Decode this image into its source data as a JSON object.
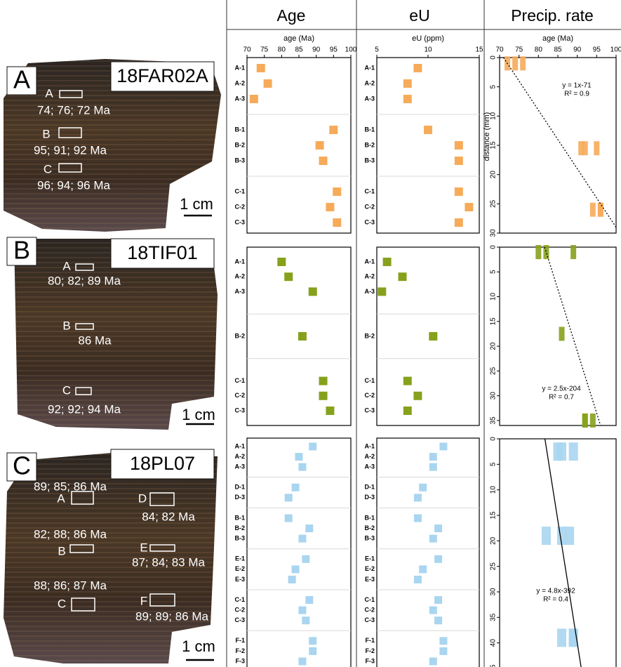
{
  "column_titles": [
    "Age",
    "eU",
    "Precip. rate"
  ],
  "photos": [
    {
      "letter": "A",
      "sample": "18FAR02A",
      "scale": "1 cm",
      "zones": [
        {
          "label": "A",
          "ages": "74; 76; 72 Ma"
        },
        {
          "label": "B",
          "ages": "95; 91; 92 Ma"
        },
        {
          "label": "C",
          "ages": "96; 94; 96 Ma"
        }
      ]
    },
    {
      "letter": "B",
      "sample": "18TIF01",
      "scale": "1 cm",
      "zones": [
        {
          "label": "A",
          "ages": "80; 82; 89 Ma"
        },
        {
          "label": "B",
          "ages": "86 Ma"
        },
        {
          "label": "C",
          "ages": "92; 92; 94 Ma"
        }
      ]
    },
    {
      "letter": "C",
      "sample": "18PL07",
      "scale": "1 cm",
      "zones": [
        {
          "label": "A",
          "ages": "89; 85; 86 Ma"
        },
        {
          "label": "D",
          "ages": "84; 82 Ma"
        },
        {
          "label": "B",
          "ages": "82; 88; 86 Ma"
        },
        {
          "label": "E",
          "ages": "87; 84; 83 Ma"
        },
        {
          "label": "C",
          "ages": "88; 86; 87 Ma"
        },
        {
          "label": "F",
          "ages": "89; 89; 86 Ma"
        }
      ]
    }
  ],
  "chart_data": [
    {
      "type": "dot",
      "x_label": "age (Ma)",
      "xlim": [
        70,
        100
      ],
      "xticks": [
        70,
        75,
        80,
        85,
        90,
        95,
        100
      ],
      "color": "#f6ab5a",
      "categories": [
        "A-1",
        "A-2",
        "A-3",
        null,
        "B-1",
        "B-2",
        "B-3",
        null,
        "C-1",
        "C-2",
        "C-3"
      ],
      "values": [
        74,
        76,
        72,
        null,
        95,
        91,
        92,
        null,
        96,
        94,
        96
      ]
    },
    {
      "type": "dot",
      "x_label": "eU (ppm)",
      "xlim": [
        5,
        15
      ],
      "xticks": [
        5,
        10,
        15
      ],
      "color": "#f6ab5a",
      "categories": [
        "A-1",
        "A-2",
        "A-3",
        null,
        "B-1",
        "B-2",
        "B-3",
        null,
        "C-1",
        "C-2",
        "C-3"
      ],
      "values": [
        9,
        8,
        8,
        null,
        10,
        13,
        13,
        null,
        13,
        14,
        13
      ]
    },
    {
      "type": "scatter",
      "x_label": "age (Ma)",
      "y_label": "distance (mm)",
      "xlim": [
        70,
        100
      ],
      "xticks": [
        70,
        75,
        80,
        85,
        90,
        95,
        100
      ],
      "ylim": [
        0,
        30
      ],
      "yticks": [
        0,
        5,
        10,
        15,
        20,
        25,
        30
      ],
      "y_inverted": true,
      "color": "#f6ab5a",
      "x": [
        74,
        76,
        72,
        95,
        91,
        92,
        96,
        94,
        96
      ],
      "y": [
        1,
        1,
        1,
        15.5,
        15.5,
        15.5,
        26,
        26,
        26
      ],
      "fit": {
        "equation": "y = 1x-71",
        "r2": "R² = 0.9",
        "slope": 1,
        "intercept": -71,
        "style": "dotted"
      }
    },
    {
      "type": "dot",
      "xlim": [
        70,
        100
      ],
      "color": "#86a11c",
      "categories": [
        "A-1",
        "A-2",
        "A-3",
        null,
        null,
        "B-2",
        null,
        null,
        "C-1",
        "C-2",
        "C-3"
      ],
      "values": [
        80,
        82,
        89,
        null,
        null,
        86,
        null,
        null,
        92,
        92,
        94
      ]
    },
    {
      "type": "dot",
      "xlim": [
        5,
        15
      ],
      "color": "#86a11c",
      "categories": [
        "A-1",
        "A-2",
        "A-3",
        null,
        null,
        "B-2",
        null,
        null,
        "C-1",
        "C-2",
        "C-3"
      ],
      "values": [
        6,
        7.5,
        5.5,
        null,
        null,
        10.5,
        null,
        null,
        8,
        9,
        8
      ]
    },
    {
      "type": "scatter",
      "xlim": [
        70,
        100
      ],
      "ylim": [
        0,
        36
      ],
      "yticks": [
        0,
        5,
        10,
        15,
        20,
        25,
        30,
        35
      ],
      "y_inverted": true,
      "color": "#86a11c",
      "x": [
        80,
        82,
        89,
        86,
        92,
        92,
        94
      ],
      "y": [
        1,
        1,
        1,
        17.5,
        35,
        35,
        35
      ],
      "fit": {
        "equation": "y = 2.5x-204",
        "r2": "R² = 0.7",
        "slope": 2.5,
        "intercept": -204,
        "style": "dotted"
      }
    },
    {
      "type": "dot",
      "xlim": [
        70,
        100
      ],
      "color": "#a9d5f0",
      "categories": [
        "A-1",
        "A-2",
        "A-3",
        null,
        "D-1",
        "D-3",
        null,
        "B-1",
        "B-2",
        "B-3",
        null,
        "E-1",
        "E-2",
        "E-3",
        null,
        "C-1",
        "C-2",
        "C-3",
        null,
        "F-1",
        "F-2",
        "F-3"
      ],
      "values": [
        89,
        85,
        86,
        null,
        84,
        82,
        null,
        82,
        88,
        86,
        null,
        87,
        84,
        83,
        null,
        88,
        86,
        87,
        null,
        89,
        89,
        86
      ]
    },
    {
      "type": "dot",
      "xlim": [
        5,
        15
      ],
      "color": "#a9d5f0",
      "categories": [
        "A-1",
        "A-2",
        "A-3",
        null,
        "D-1",
        "D-3",
        null,
        "B-1",
        "B-2",
        "B-3",
        null,
        "E-1",
        "E-2",
        "E-3",
        null,
        "C-1",
        "C-2",
        "C-3",
        null,
        "F-1",
        "F-2",
        "F-3"
      ],
      "values": [
        11.5,
        10.5,
        10.5,
        null,
        9.5,
        9,
        null,
        9,
        11,
        10.5,
        null,
        11,
        9.5,
        9,
        null,
        11,
        10.5,
        11,
        null,
        11.5,
        11.5,
        10.5
      ]
    },
    {
      "type": "scatter",
      "xlim": [
        70,
        100
      ],
      "ylim": [
        0,
        45
      ],
      "yticks": [
        0,
        5,
        10,
        15,
        20,
        25,
        30,
        35,
        40,
        45
      ],
      "y_inverted": true,
      "color": "#a9d5f0",
      "x": [
        89,
        85,
        86,
        82,
        88,
        86,
        89,
        89,
        86
      ],
      "y": [
        2.5,
        2.5,
        2.5,
        19,
        19,
        19,
        39,
        39,
        39
      ],
      "fit": {
        "equation": "y = 4.8x-392",
        "r2": "R² = 0.4",
        "slope": 4.8,
        "intercept": -392,
        "style": "solid"
      }
    }
  ]
}
